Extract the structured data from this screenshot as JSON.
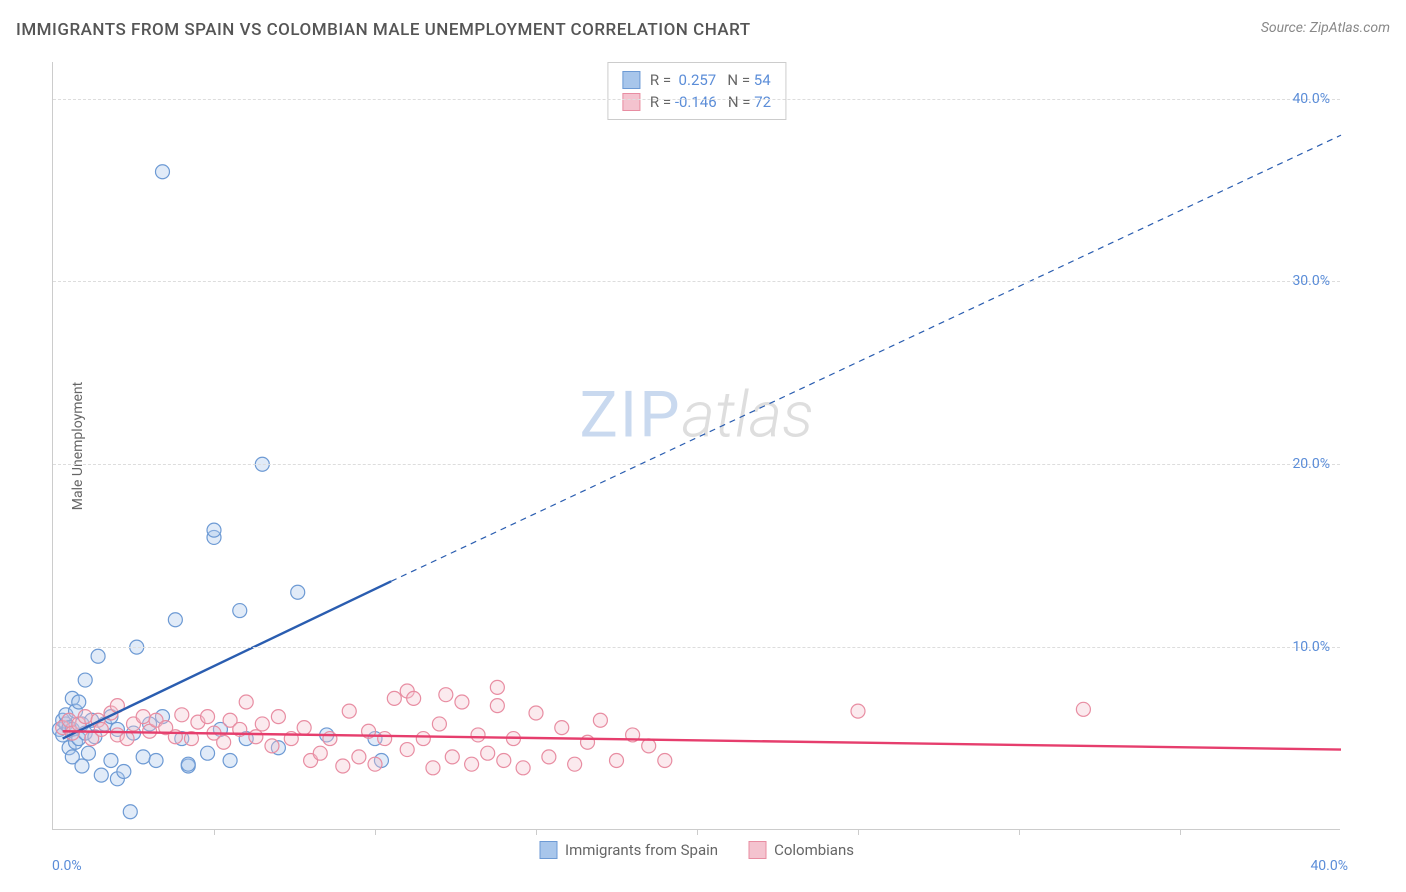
{
  "title": "IMMIGRANTS FROM SPAIN VS COLOMBIAN MALE UNEMPLOYMENT CORRELATION CHART",
  "source": "Source: ZipAtlas.com",
  "ylabel": "Male Unemployment",
  "watermark": {
    "part1": "ZIP",
    "part2": "atlas"
  },
  "chart": {
    "type": "scatter",
    "xlim": [
      0,
      40
    ],
    "ylim": [
      0,
      42
    ],
    "xtick_labels": [
      "0.0%",
      "40.0%"
    ],
    "ytick_positions": [
      10,
      20,
      30,
      40
    ],
    "ytick_labels": [
      "10.0%",
      "20.0%",
      "30.0%",
      "40.0%"
    ],
    "xtick_minor_step": 5,
    "background_color": "#ffffff",
    "grid_color": "#dddddd",
    "axis_color": "#cccccc",
    "tick_label_color": "#5b8dd8",
    "marker_radius": 7,
    "marker_fill_opacity": 0.35,
    "marker_stroke_width": 1.2,
    "trend_solid_width": 2.4,
    "trend_dash_width": 1.2,
    "trend_dash_pattern": "6,5",
    "series": [
      {
        "key": "spain",
        "label": "Immigrants from Spain",
        "color_fill": "#a8c6eb",
        "color_stroke": "#6d9ad4",
        "trend_color": "#2a5db0",
        "R": "0.257",
        "N": "54",
        "trend_solid": {
          "x1": 0.3,
          "y1": 5.0,
          "x2": 10.5,
          "y2": 13.6
        },
        "trend_dash": {
          "x1": 10.5,
          "y1": 13.6,
          "x2": 40.0,
          "y2": 38.0
        },
        "points": [
          [
            0.2,
            5.5
          ],
          [
            0.3,
            6.0
          ],
          [
            0.3,
            5.2
          ],
          [
            0.4,
            5.8
          ],
          [
            0.4,
            6.3
          ],
          [
            0.5,
            4.5
          ],
          [
            0.5,
            5.6
          ],
          [
            0.6,
            7.2
          ],
          [
            0.6,
            4.0
          ],
          [
            0.6,
            5.5
          ],
          [
            0.7,
            6.5
          ],
          [
            0.7,
            4.8
          ],
          [
            0.8,
            5.0
          ],
          [
            0.8,
            7.0
          ],
          [
            0.9,
            3.5
          ],
          [
            0.9,
            5.8
          ],
          [
            1.0,
            5.3
          ],
          [
            1.0,
            8.2
          ],
          [
            1.1,
            4.2
          ],
          [
            1.2,
            6.0
          ],
          [
            1.3,
            5.1
          ],
          [
            1.4,
            9.5
          ],
          [
            1.5,
            3.0
          ],
          [
            1.6,
            5.8
          ],
          [
            1.8,
            3.8
          ],
          [
            1.8,
            6.2
          ],
          [
            2.0,
            2.8
          ],
          [
            2.0,
            5.5
          ],
          [
            2.2,
            3.2
          ],
          [
            2.4,
            1.0
          ],
          [
            2.5,
            5.3
          ],
          [
            2.6,
            10.0
          ],
          [
            2.8,
            4.0
          ],
          [
            3.0,
            5.8
          ],
          [
            3.2,
            3.8
          ],
          [
            3.4,
            6.2
          ],
          [
            3.4,
            36.0
          ],
          [
            3.8,
            11.5
          ],
          [
            4.0,
            5.0
          ],
          [
            4.2,
            3.5
          ],
          [
            4.2,
            3.6
          ],
          [
            4.8,
            4.2
          ],
          [
            5.0,
            16.0
          ],
          [
            5.0,
            16.4
          ],
          [
            5.2,
            5.5
          ],
          [
            5.5,
            3.8
          ],
          [
            5.8,
            12.0
          ],
          [
            6.0,
            5.0
          ],
          [
            6.5,
            20.0
          ],
          [
            7.0,
            4.5
          ],
          [
            7.6,
            13.0
          ],
          [
            8.5,
            5.2
          ],
          [
            10.0,
            5.0
          ],
          [
            10.2,
            3.8
          ]
        ]
      },
      {
        "key": "colombia",
        "label": "Colombians",
        "color_fill": "#f4c3cf",
        "color_stroke": "#e88da2",
        "trend_color": "#e63e6d",
        "R": "-0.146",
        "N": "72",
        "trend_solid": {
          "x1": 0.3,
          "y1": 5.4,
          "x2": 40.0,
          "y2": 4.4
        },
        "trend_dash": null,
        "points": [
          [
            0.3,
            5.6
          ],
          [
            0.5,
            6.0
          ],
          [
            0.6,
            5.3
          ],
          [
            0.8,
            5.8
          ],
          [
            1.0,
            6.2
          ],
          [
            1.2,
            5.0
          ],
          [
            1.4,
            6.0
          ],
          [
            1.5,
            5.5
          ],
          [
            1.8,
            6.4
          ],
          [
            2.0,
            5.2
          ],
          [
            2.0,
            6.8
          ],
          [
            2.3,
            5.0
          ],
          [
            2.5,
            5.8
          ],
          [
            2.8,
            6.2
          ],
          [
            3.0,
            5.4
          ],
          [
            3.2,
            6.0
          ],
          [
            3.5,
            5.6
          ],
          [
            3.8,
            5.1
          ],
          [
            4.0,
            6.3
          ],
          [
            4.3,
            5.0
          ],
          [
            4.5,
            5.9
          ],
          [
            4.8,
            6.2
          ],
          [
            5.0,
            5.3
          ],
          [
            5.3,
            4.8
          ],
          [
            5.5,
            6.0
          ],
          [
            5.8,
            5.5
          ],
          [
            6.0,
            7.0
          ],
          [
            6.3,
            5.1
          ],
          [
            6.5,
            5.8
          ],
          [
            6.8,
            4.6
          ],
          [
            7.0,
            6.2
          ],
          [
            7.4,
            5.0
          ],
          [
            7.8,
            5.6
          ],
          [
            8.0,
            3.8
          ],
          [
            8.3,
            4.2
          ],
          [
            8.6,
            5.0
          ],
          [
            9.0,
            3.5
          ],
          [
            9.2,
            6.5
          ],
          [
            9.5,
            4.0
          ],
          [
            9.8,
            5.4
          ],
          [
            10.0,
            3.6
          ],
          [
            10.3,
            5.0
          ],
          [
            10.6,
            7.2
          ],
          [
            11.0,
            4.4
          ],
          [
            11.0,
            7.6
          ],
          [
            11.2,
            7.2
          ],
          [
            11.5,
            5.0
          ],
          [
            11.8,
            3.4
          ],
          [
            12.0,
            5.8
          ],
          [
            12.4,
            4.0
          ],
          [
            12.7,
            7.0
          ],
          [
            13.0,
            3.6
          ],
          [
            13.2,
            5.2
          ],
          [
            13.5,
            4.2
          ],
          [
            13.8,
            6.8
          ],
          [
            14.0,
            3.8
          ],
          [
            14.3,
            5.0
          ],
          [
            14.6,
            3.4
          ],
          [
            15.0,
            6.4
          ],
          [
            15.4,
            4.0
          ],
          [
            15.8,
            5.6
          ],
          [
            16.2,
            3.6
          ],
          [
            16.6,
            4.8
          ],
          [
            17.0,
            6.0
          ],
          [
            17.5,
            3.8
          ],
          [
            18.0,
            5.2
          ],
          [
            18.5,
            4.6
          ],
          [
            19.0,
            3.8
          ],
          [
            25.0,
            6.5
          ],
          [
            32.0,
            6.6
          ],
          [
            13.8,
            7.8
          ],
          [
            12.2,
            7.4
          ]
        ]
      }
    ]
  }
}
